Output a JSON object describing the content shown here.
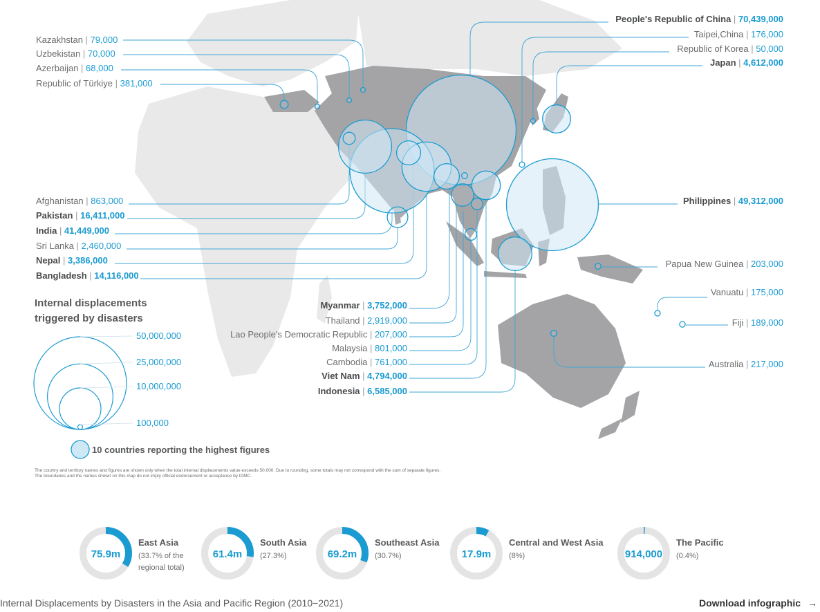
{
  "chart_data": {
    "type": "bubble-map",
    "title": "Internal displacements triggered by disasters",
    "countries": [
      {
        "name": "Kazakhstan",
        "value": "79,000",
        "n": 79000,
        "highlight": false
      },
      {
        "name": "Uzbekistan",
        "value": "70,000",
        "n": 70000,
        "highlight": false
      },
      {
        "name": "Azerbaijan",
        "value": "68,000",
        "n": 68000,
        "highlight": false
      },
      {
        "name": "Republic of Türkiye",
        "value": "381,000",
        "n": 381000,
        "highlight": false
      },
      {
        "name": "People's Republic of China",
        "value": "70,439,000",
        "n": 70439000,
        "highlight": true
      },
      {
        "name": "Taipei,China",
        "value": "176,000",
        "n": 176000,
        "highlight": false
      },
      {
        "name": "Republic of Korea",
        "value": "50,000",
        "n": 50000,
        "highlight": false
      },
      {
        "name": "Japan",
        "value": "4,612,000",
        "n": 4612000,
        "highlight": true
      },
      {
        "name": "Afghanistan",
        "value": "863,000",
        "n": 863000,
        "highlight": false
      },
      {
        "name": "Pakistan",
        "value": "16,411,000",
        "n": 16411000,
        "highlight": true
      },
      {
        "name": "India",
        "value": "41,449,000",
        "n": 41449000,
        "highlight": true
      },
      {
        "name": "Sri Lanka",
        "value": "2,460,000",
        "n": 2460000,
        "highlight": false
      },
      {
        "name": "Nepal",
        "value": "3,386,000",
        "n": 3386000,
        "highlight": true
      },
      {
        "name": "Bangladesh",
        "value": "14,116,000",
        "n": 14116000,
        "highlight": true
      },
      {
        "name": "Philippines",
        "value": "49,312,000",
        "n": 49312000,
        "highlight": true
      },
      {
        "name": "Papua New Guinea",
        "value": "203,000",
        "n": 203000,
        "highlight": false
      },
      {
        "name": "Vanuatu",
        "value": "175,000",
        "n": 175000,
        "highlight": false
      },
      {
        "name": "Fiji",
        "value": "189,000",
        "n": 189000,
        "highlight": false
      },
      {
        "name": "Australia",
        "value": "217,000",
        "n": 217000,
        "highlight": false
      },
      {
        "name": "Myanmar",
        "value": "3,752,000",
        "n": 3752000,
        "highlight": true
      },
      {
        "name": "Thailand",
        "value": "2,919,000",
        "n": 2919000,
        "highlight": false
      },
      {
        "name": "Lao People's Democratic Republic",
        "value": "207,000",
        "n": 207000,
        "highlight": false
      },
      {
        "name": "Malaysia",
        "value": "801,000",
        "n": 801000,
        "highlight": false
      },
      {
        "name": "Cambodia",
        "value": "761,000",
        "n": 761000,
        "highlight": false
      },
      {
        "name": "Viet Nam",
        "value": "4,794,000",
        "n": 4794000,
        "highlight": true
      },
      {
        "name": "Indonesia",
        "value": "6,585,000",
        "n": 6585000,
        "highlight": true
      }
    ],
    "legend": {
      "title_line1": "Internal displacements",
      "title_line2": "triggered by disasters",
      "sizes": [
        {
          "label": "50,000,000",
          "n": 50000000
        },
        {
          "label": "25,000,000",
          "n": 25000000
        },
        {
          "label": "10,000,000",
          "n": 10000000
        },
        {
          "label": "100,000",
          "n": 100000
        }
      ],
      "highlight_label": "10 countries reporting the highest figures"
    },
    "notes": [
      "The country and territory names and figures are shown only when the total internal displacements value exceeds 50,000. Due to rounding, some totals may not correspond with the sum of separate figures.",
      "The boundaries and the names shown on this map do not imply official endorsement or acceptance by IDMC."
    ],
    "regions": [
      {
        "center": "75.9m",
        "name": "East Asia",
        "sub": [
          "(33.7% of the",
          "regional total)"
        ],
        "share": 33.7
      },
      {
        "center": "61.4m",
        "name": "South Asia",
        "sub": [
          "(27.3%)"
        ],
        "share": 27.3
      },
      {
        "center": "69.2m",
        "name": "Southeast Asia",
        "sub": [
          "(30.7%)"
        ],
        "share": 30.7
      },
      {
        "center": "17.9m",
        "name": "Central and West Asia",
        "sub": [
          "(8%)"
        ],
        "share": 8
      },
      {
        "center": "914,000",
        "name": "The Pacific",
        "sub": [
          "(0.4%)"
        ],
        "share": 0.4
      }
    ],
    "colors": {
      "bubble_stroke": "#1a9bd1",
      "highlight_fill": "#cfe8f5",
      "asia_land": "#a4a4a6",
      "other_land": "#e9e9e9",
      "donut_track": "#e4e4e4"
    }
  },
  "footer": {
    "caption": "Internal Displacements by Disasters in the Asia and Pacific Region (2010−2021)",
    "download_label": "Download infographic",
    "download_arrow": "→"
  }
}
